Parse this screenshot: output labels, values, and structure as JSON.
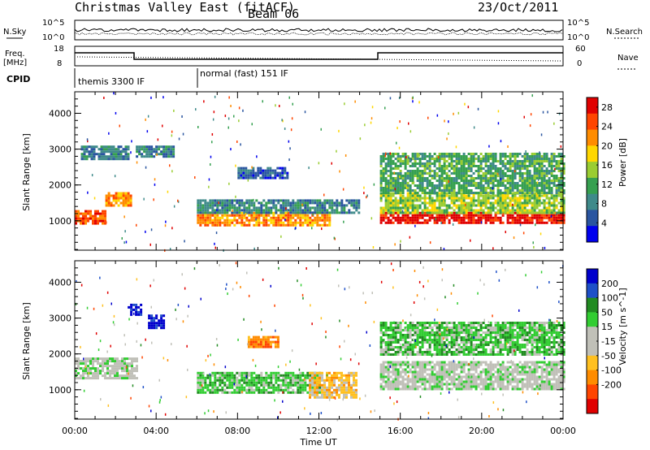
{
  "header": {
    "title": "Christmas Valley East (fitACF)",
    "beam": "Beam 06",
    "date": "23/Oct/2011"
  },
  "top_panels": {
    "nsky_label": "N.Sky",
    "nsearch_label": "N.Search",
    "noise_ticks": [
      "10^5",
      "10^0"
    ],
    "freq_label_1": "Freq.",
    "freq_label_2": "[MHz]",
    "freq_ticks": [
      "18",
      "8"
    ],
    "nave_label": "Nave",
    "nave_ticks": [
      "60",
      "0"
    ],
    "cpid_label": "CPID",
    "cpid_segments": [
      "themis 3300 IF",
      "normal (fast) 151 IF"
    ]
  },
  "colors": {
    "power": [
      "#0000ee",
      "#2a55a0",
      "#3f8a8a",
      "#36a050",
      "#9acd32",
      "#ffd700",
      "#ff8c00",
      "#ff4500",
      "#e00000"
    ],
    "velocity": [
      "#0000cc",
      "#1e50c8",
      "#228b22",
      "#32cd32",
      "#c0c0b8",
      "#c0c0b8",
      "#ffc020",
      "#ff8c00",
      "#ff4500",
      "#e00000"
    ]
  },
  "chart_data": [
    {
      "type": "heatmap",
      "xlabel": "Time UT",
      "ylabel": "Slant Range [km]",
      "x_ticks": [
        "00:00",
        "04:00",
        "08:00",
        "12:00",
        "16:00",
        "20:00",
        "00:00"
      ],
      "y_ticks": [
        "1000",
        "2000",
        "3000",
        "4000"
      ],
      "xlim_hours": [
        0,
        24
      ],
      "ylim_km": [
        180,
        4600
      ],
      "colorbar": {
        "label": "Power [dB]",
        "ticks": [
          "4",
          "8",
          "12",
          "16",
          "20",
          "24",
          "28"
        ],
        "range": [
          0,
          30
        ]
      },
      "bands": [
        {
          "t0": 0.0,
          "t1": 1.5,
          "r0": 900,
          "r1": 1300,
          "level": 7
        },
        {
          "t0": 1.5,
          "t1": 2.8,
          "r0": 1400,
          "r1": 1800,
          "level": 6
        },
        {
          "t0": 0.3,
          "t1": 2.6,
          "r0": 2700,
          "r1": 3100,
          "level": 2
        },
        {
          "t0": 3.0,
          "t1": 4.8,
          "r0": 2800,
          "r1": 3100,
          "level": 2
        },
        {
          "t0": 6.0,
          "t1": 12.5,
          "r0": 850,
          "r1": 1250,
          "level": 6
        },
        {
          "t0": 6.0,
          "t1": 14.0,
          "r0": 1250,
          "r1": 1600,
          "level": 2
        },
        {
          "t0": 8.0,
          "t1": 10.5,
          "r0": 2200,
          "r1": 2500,
          "level": 1
        },
        {
          "t0": 15.0,
          "t1": 24.0,
          "r0": 950,
          "r1": 1250,
          "level": 8
        },
        {
          "t0": 15.0,
          "t1": 24.0,
          "r0": 1250,
          "r1": 1800,
          "level": 4
        },
        {
          "t0": 15.0,
          "t1": 24.0,
          "r0": 1800,
          "r1": 2900,
          "level": 3
        }
      ]
    },
    {
      "type": "heatmap",
      "xlabel": "Time UT",
      "ylabel": "Slant Range [km]",
      "x_ticks": [
        "00:00",
        "04:00",
        "08:00",
        "12:00",
        "16:00",
        "20:00",
        "00:00"
      ],
      "y_ticks": [
        "1000",
        "2000",
        "3000",
        "4000"
      ],
      "xlim_hours": [
        0,
        24
      ],
      "ylim_km": [
        180,
        4600
      ],
      "colorbar": {
        "label": "Velocity [m s^-1]",
        "ticks": [
          "200",
          "100",
          "50",
          "15",
          "-15",
          "-50",
          "-100",
          "-200"
        ],
        "range": [
          -250,
          250
        ]
      },
      "bands": [
        {
          "t0": 0.0,
          "t1": 3.0,
          "r0": 1300,
          "r1": 1900,
          "level": 4
        },
        {
          "t0": 2.6,
          "t1": 3.2,
          "r0": 3100,
          "r1": 3400,
          "level": 0
        },
        {
          "t0": 3.6,
          "t1": 4.4,
          "r0": 2700,
          "r1": 3100,
          "level": 0
        },
        {
          "t0": 6.0,
          "t1": 12.0,
          "r0": 900,
          "r1": 1500,
          "level": 3
        },
        {
          "t0": 11.5,
          "t1": 13.8,
          "r0": 800,
          "r1": 1500,
          "level": 6
        },
        {
          "t0": 8.5,
          "t1": 10.0,
          "r0": 2200,
          "r1": 2500,
          "level": 7
        },
        {
          "t0": 15.0,
          "t1": 24.0,
          "r0": 1000,
          "r1": 1800,
          "level": 4
        },
        {
          "t0": 15.0,
          "t1": 24.0,
          "r0": 2000,
          "r1": 2900,
          "level": 3
        }
      ]
    }
  ]
}
